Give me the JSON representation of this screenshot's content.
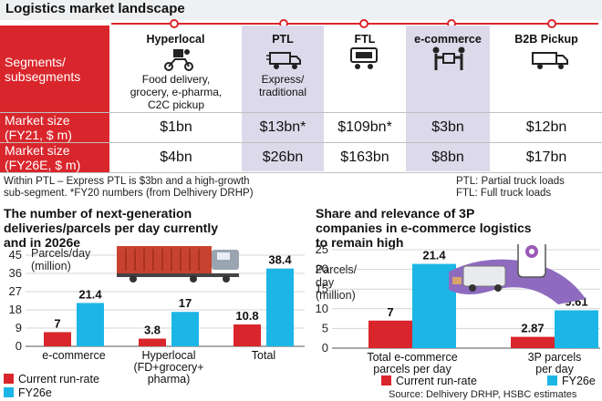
{
  "title": "Logistics market landscape",
  "table": {
    "row_header": "Segments/\nsubsegments",
    "columns": [
      {
        "name": "Hyperlocal",
        "sub": "Food delivery,\ngrocery, e-pharma,\nC2C pickup",
        "icon": "delivery-scooter-icon",
        "fy21": "$1bn",
        "fy26": "$4bn"
      },
      {
        "name": "PTL",
        "sub": "Express/\ntraditional",
        "icon": "truck-icon",
        "fy21": "$13bn*",
        "fy26": "$26bn"
      },
      {
        "name": "FTL",
        "sub": "",
        "icon": "container-truck-icon",
        "fy21": "$109bn*",
        "fy26": "$163bn"
      },
      {
        "name": "e-commerce",
        "sub": "",
        "icon": "parcel-handover-icon",
        "fy21": "$3bn",
        "fy26": "$8bn"
      },
      {
        "name": "B2B Pickup",
        "sub": "",
        "icon": "pickup-truck-icon",
        "fy21": "$12bn",
        "fy26": "$17bn"
      }
    ],
    "row_fy21_label": "Market size\n(FY21, $ m)",
    "row_fy26_label": "Market size\n(FY26E, $ m)"
  },
  "footnote": "Within PTL – Express PTL is $3bn and a high-growth\nsub-segment. *FY20 numbers (from Delhivery DRHP)",
  "ptl_note": "PTL: Partial truck loads",
  "ftl_note": "FTL: Full truck loads",
  "source": "Source: Delhivery DRHP, HSBC estimates",
  "colors": {
    "red": "#d9262c",
    "cyan": "#1cb6e6",
    "shade": "#dcdaea"
  },
  "chart_data": [
    {
      "type": "bar",
      "title": "The number of next-generation\ndeliveries/parcels per day currently\nand in 2026e",
      "ylabel": "Parcels/day\n(million)",
      "ylim": [
        0,
        45
      ],
      "yticks": [
        0,
        9,
        18,
        27,
        36,
        45
      ],
      "categories": [
        "e-commerce",
        "Hyperlocal\n(FD+grocery+\npharma)",
        "Total"
      ],
      "series": [
        {
          "name": "Current run-rate",
          "values": [
            7,
            3.8,
            10.8
          ],
          "labels": [
            "7",
            "3.8",
            "10.8"
          ]
        },
        {
          "name": "FY26e",
          "values": [
            21.4,
            17,
            38.4
          ],
          "labels": [
            "21.4",
            "17",
            "38.4"
          ]
        }
      ]
    },
    {
      "type": "bar",
      "title": "Share and relevance of 3P\ncompanies in e-commerce logistics\nto remain high",
      "ylabel": "Parcels/\nday\n(million)",
      "ylim": [
        0,
        25
      ],
      "yticks": [
        0,
        5,
        10,
        15,
        20,
        25
      ],
      "categories": [
        "Total e-commerce\nparcels per day",
        "3P parcels\nper day"
      ],
      "series": [
        {
          "name": "Current run-rate",
          "values": [
            7,
            2.87
          ],
          "labels": [
            "7",
            "2.87"
          ]
        },
        {
          "name": "FY26e",
          "values": [
            21.4,
            9.61
          ],
          "labels": [
            "21.4",
            "9.61"
          ]
        }
      ]
    }
  ]
}
